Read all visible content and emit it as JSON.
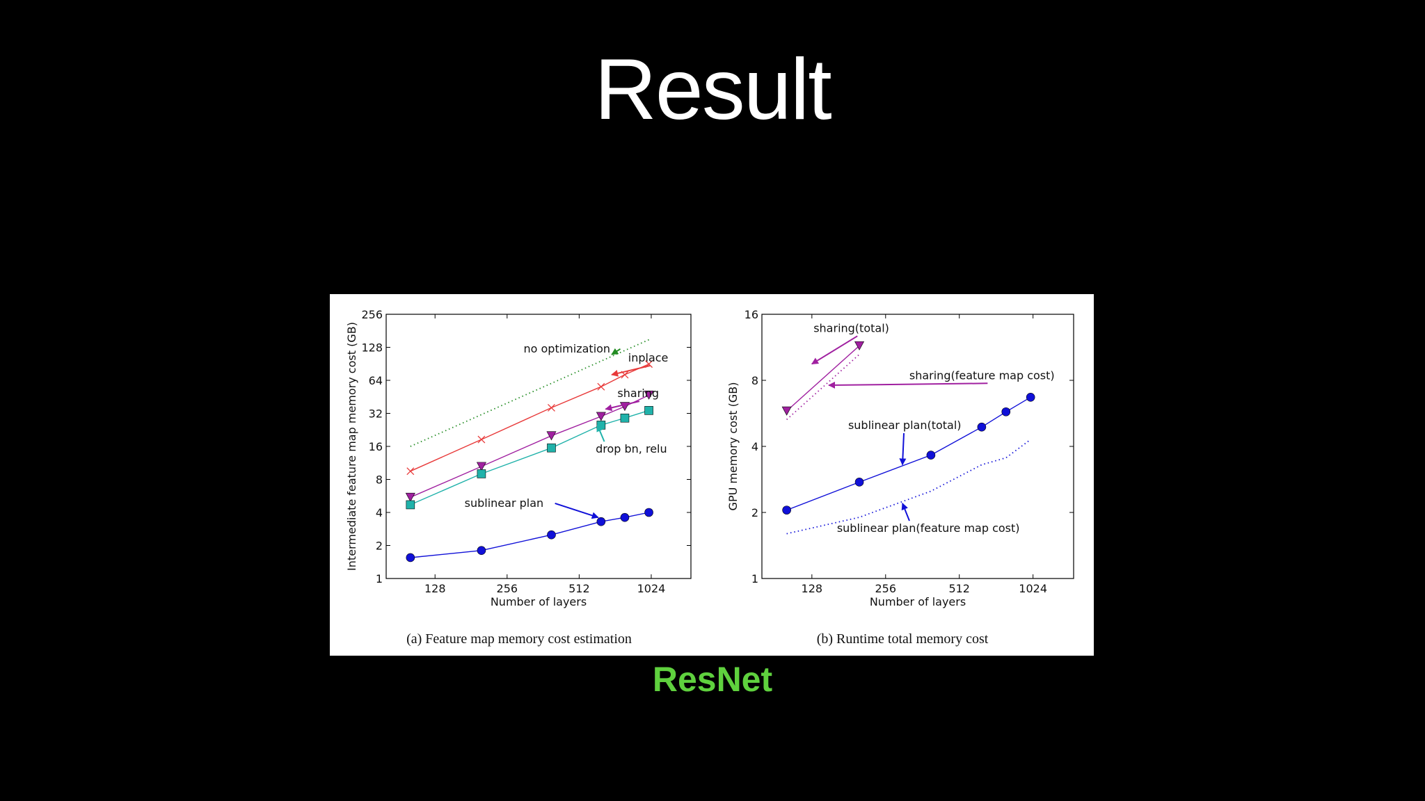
{
  "slide": {
    "title": "Result",
    "subtitle": "ResNet",
    "subtitle_color": "#5fd13e",
    "background": "#000000"
  },
  "chart_data": [
    {
      "type": "line",
      "caption": "(a) Feature map memory cost estimation",
      "xlabel": "Number of layers",
      "ylabel": "Intermediate feature map memory cost (GB)",
      "x_scale": "log2",
      "y_scale": "log2",
      "xlim": [
        80,
        1500
      ],
      "ylim": [
        1,
        256
      ],
      "x_ticks": [
        128,
        256,
        512,
        1024
      ],
      "y_ticks": [
        1,
        2,
        4,
        8,
        16,
        32,
        64,
        128,
        256
      ],
      "grid": false,
      "series": [
        {
          "key": "noopt",
          "color": "#228b22",
          "style": "dotted",
          "marker": "none",
          "x": [
            101,
            1001
          ],
          "y": [
            16,
            150
          ]
        },
        {
          "key": "inplace",
          "color": "#e83a3a",
          "style": "solid",
          "marker": "x",
          "x": [
            101,
            200,
            392,
            632,
            794,
            1001
          ],
          "y": [
            9.5,
            18.5,
            36,
            56,
            72,
            90
          ]
        },
        {
          "key": "sharing",
          "color": "#a020a0",
          "style": "solid",
          "marker": "triangle-down",
          "x": [
            101,
            200,
            392,
            632,
            794,
            1001
          ],
          "y": [
            5.5,
            10.5,
            20,
            30,
            37,
            47
          ]
        },
        {
          "key": "dropbn",
          "color": "#20b2aa",
          "style": "solid",
          "marker": "square",
          "x": [
            101,
            200,
            392,
            632,
            794,
            1001
          ],
          "y": [
            4.7,
            9,
            15.5,
            25,
            29,
            34
          ]
        },
        {
          "key": "sublinear",
          "color": "#1010d8",
          "style": "solid",
          "marker": "circle",
          "x": [
            101,
            200,
            392,
            632,
            794,
            1001
          ],
          "y": [
            1.55,
            1.8,
            2.5,
            3.3,
            3.6,
            4.0
          ]
        }
      ],
      "annotations": [
        {
          "text": "no optimization",
          "color": "#228b22",
          "tx": 300,
          "ty": 115,
          "ax": 700,
          "ay": 110
        },
        {
          "text": "inplace",
          "color": "#e83a3a",
          "tx": 820,
          "ty": 95,
          "ax": 700,
          "ay": 72
        },
        {
          "text": "sharing",
          "color": "#a020a0",
          "tx": 740,
          "ty": 45,
          "ax": 660,
          "ay": 35
        },
        {
          "text": "drop bn, relu",
          "color": "#20b2aa",
          "tx": 600,
          "ty": 14,
          "ax": 610,
          "ay": 25
        },
        {
          "text": "sublinear plan",
          "color": "#1010d8",
          "tx": 170,
          "ty": 4.5,
          "ax": 615,
          "ay": 3.6
        }
      ]
    },
    {
      "type": "line",
      "caption": "(b) Runtime total memory cost",
      "xlabel": "Number of layers",
      "ylabel": "GPU memory cost (GB)",
      "x_scale": "log2",
      "y_scale": "log2",
      "xlim": [
        80,
        1500
      ],
      "ylim": [
        1,
        16
      ],
      "x_ticks": [
        128,
        256,
        512,
        1024
      ],
      "y_ticks": [
        1,
        2,
        4,
        8,
        16
      ],
      "grid": false,
      "series": [
        {
          "key": "sharing_total",
          "color": "#a020a0",
          "style": "solid",
          "marker": "triangle-down",
          "x": [
            101,
            200
          ],
          "y": [
            5.8,
            11.5
          ]
        },
        {
          "key": "sharing_fm",
          "color": "#a020a0",
          "style": "dotted",
          "marker": "none",
          "x": [
            101,
            200
          ],
          "y": [
            5.3,
            10.5
          ]
        },
        {
          "key": "sublinear_total",
          "color": "#1010d8",
          "style": "solid",
          "marker": "circle",
          "x": [
            101,
            200,
            392,
            632,
            794,
            1001
          ],
          "y": [
            2.05,
            2.75,
            3.65,
            4.9,
            5.75,
            6.7
          ]
        },
        {
          "key": "sublinear_fm",
          "color": "#1010d8",
          "style": "dotted",
          "marker": "none",
          "x": [
            101,
            200,
            392,
            632,
            794,
            1001
          ],
          "y": [
            1.6,
            1.9,
            2.5,
            3.3,
            3.55,
            4.3
          ]
        }
      ],
      "annotations": [
        {
          "text": "sharing(total)",
          "color": "#a020a0",
          "tx": 130,
          "ty": 13.3,
          "ax": 128,
          "ay": 9.5
        },
        {
          "text": "sharing(feature map cost)",
          "color": "#a020a0",
          "tx": 320,
          "ty": 8.1,
          "ax": 150,
          "ay": 7.6
        },
        {
          "text": "sublinear plan(total)",
          "color": "#1010d8",
          "tx": 180,
          "ty": 4.8,
          "ax": 300,
          "ay": 3.3
        },
        {
          "text": "sublinear plan(feature map cost)",
          "color": "#1010d8",
          "tx": 162,
          "ty": 1.63,
          "ax": 300,
          "ay": 2.2
        }
      ]
    }
  ]
}
